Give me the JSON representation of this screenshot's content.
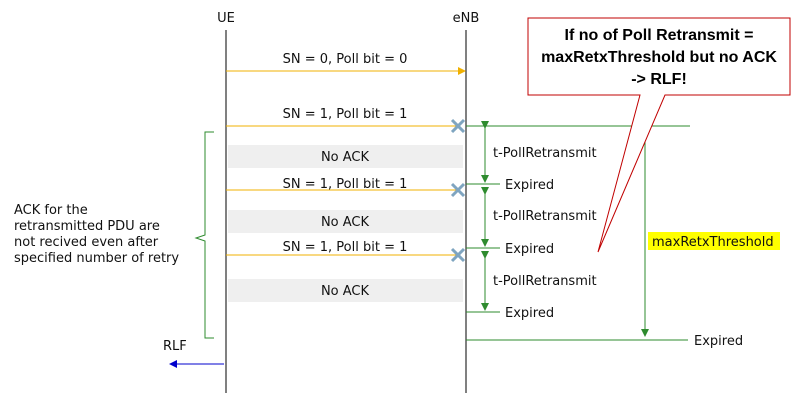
{
  "entities": {
    "ue": "UE",
    "enb": "eNB"
  },
  "messages": [
    {
      "label": "SN = 0, Poll bit = 0"
    },
    {
      "label": "SN = 1, Poll bit = 1"
    },
    {
      "label": "SN = 1, Poll bit = 1"
    },
    {
      "label": "SN = 1, Poll bit = 1"
    }
  ],
  "no_ack": [
    "No ACK",
    "No ACK",
    "No ACK"
  ],
  "timer": {
    "name": "t-PollRetransmit",
    "expired": "Expired"
  },
  "threshold": {
    "name": "maxRetxThreshold",
    "expired": "Expired",
    "highlight_color": "#ffff00"
  },
  "callout": {
    "line1": "If no of Poll Retransmit =",
    "line2": "maxRetxThreshold but no ACK",
    "line3": "-> RLF!",
    "border_color": "#c00000"
  },
  "brace_note": {
    "line1": "ACK for the",
    "line2": "retransmitted PDU are",
    "line3": "not recived even after",
    "line4": "specified number of retry"
  },
  "rlf": {
    "label": "RLF",
    "arrow_color": "#0000cc"
  },
  "colors": {
    "message": "#f0b000",
    "timer": "#2e8b2e",
    "gray_box": "#efefef",
    "x_mark": "#7fa5c0"
  }
}
